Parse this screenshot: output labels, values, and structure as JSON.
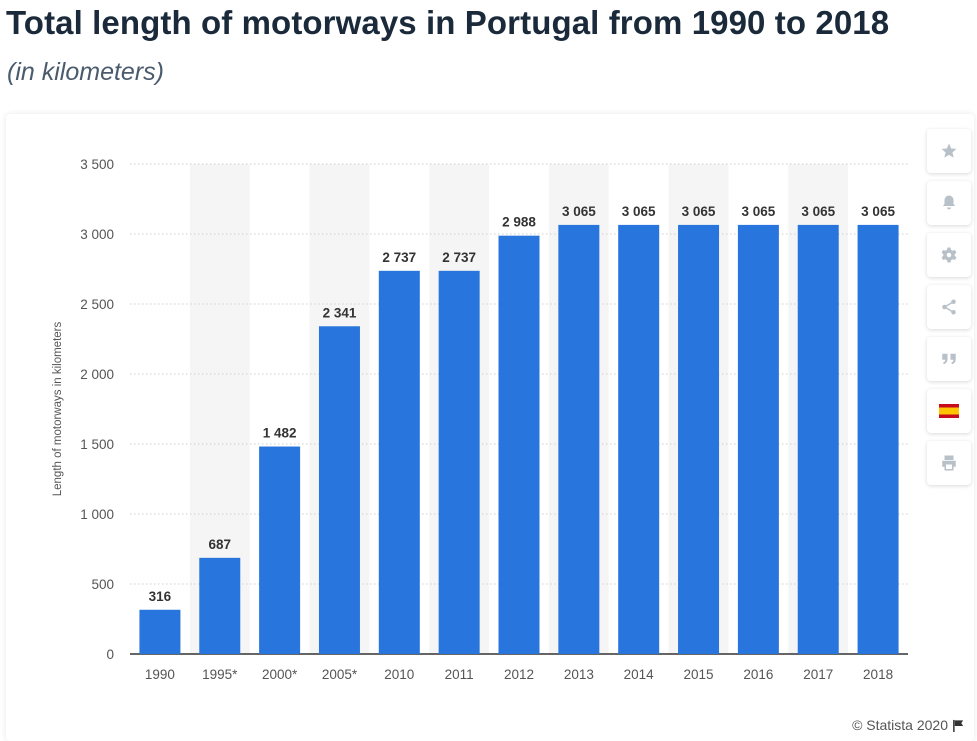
{
  "header": {
    "title": "Total length of motorways in Portugal from 1990 to 2018",
    "subtitle": "(in kilometers)"
  },
  "toolbar": {
    "buttons": [
      "star-icon",
      "bell-icon",
      "gear-icon",
      "share-icon",
      "quote-icon",
      "flag-spain-icon",
      "print-icon"
    ]
  },
  "footer": {
    "source": "© Statista 2020"
  },
  "colors": {
    "bar": "#2876dd",
    "band": "#f5f5f5",
    "grid": "#cfcfcf",
    "text": "#555555",
    "label": "#333333"
  },
  "chart_data": {
    "type": "bar",
    "title": "",
    "xlabel": "",
    "ylabel": "Length of motorways in kilometers",
    "categories": [
      "1990",
      "1995*",
      "2000*",
      "2005*",
      "2010",
      "2011",
      "2012",
      "2013",
      "2014",
      "2015",
      "2016",
      "2017",
      "2018"
    ],
    "values": [
      316,
      687,
      1482,
      2341,
      2737,
      2737,
      2988,
      3065,
      3065,
      3065,
      3065,
      3065,
      3065
    ],
    "value_labels": [
      "316",
      "687",
      "1 482",
      "2 341",
      "2 737",
      "2 737",
      "2 988",
      "3 065",
      "3 065",
      "3 065",
      "3 065",
      "3 065",
      "3 065"
    ],
    "ylim": [
      0,
      3500
    ],
    "yticks": [
      0,
      500,
      1000,
      1500,
      2000,
      2500,
      3000,
      3500
    ],
    "ytick_labels": [
      "0",
      "500",
      "1 000",
      "1 500",
      "2 000",
      "2 500",
      "3 000",
      "3 500"
    ],
    "grid": true,
    "legend": "none"
  }
}
